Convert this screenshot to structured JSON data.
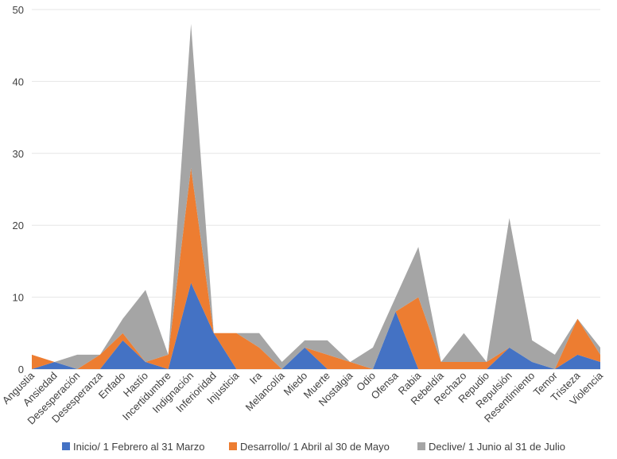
{
  "chart_data": {
    "type": "area",
    "stacked": true,
    "title": "",
    "xlabel": "",
    "ylabel": "",
    "ylim": [
      0,
      50
    ],
    "yticks": [
      0,
      10,
      20,
      30,
      40,
      50
    ],
    "categories": [
      "Angustia",
      "Ansiedad",
      "Desesperación",
      "Desesperanza",
      "Enfado",
      "Hastío",
      "Incertidumbre",
      "Indignación",
      "Inferioridad",
      "Injusticia",
      "Ira",
      "Melancolía",
      "Miedo",
      "Muerte",
      "Nostalgia",
      "Odio",
      "Ofensa",
      "Rabia",
      "Rebeldía",
      "Rechazo",
      "Repudio",
      "Repulsión",
      "Resentimiento",
      "Temor",
      "Tristeza",
      "Violencia"
    ],
    "series": [
      {
        "name": "Inicio/ 1 Febrero al 31 Marzo",
        "color": "#4472C4",
        "values": [
          0,
          1,
          0,
          0,
          4,
          1,
          0,
          12,
          5,
          0,
          0,
          0,
          3,
          0,
          0,
          0,
          8,
          0,
          0,
          0,
          0,
          3,
          1,
          0,
          2,
          1
        ]
      },
      {
        "name": "Desarrollo/ 1 Abril al 30 de Mayo",
        "color": "#ED7D31",
        "values": [
          2,
          0,
          0,
          2,
          1,
          0,
          2,
          16,
          0,
          5,
          3,
          0,
          0,
          2,
          1,
          0,
          0,
          10,
          1,
          1,
          1,
          0,
          0,
          0,
          5,
          1
        ]
      },
      {
        "name": "Declive/ 1 Junio al 31 de Julio",
        "color": "#A5A5A5",
        "values": [
          0,
          0,
          2,
          0,
          2,
          10,
          0,
          20,
          0,
          0,
          2,
          1,
          1,
          2,
          0,
          3,
          2,
          7,
          0,
          4,
          0,
          18,
          3,
          2,
          0,
          1
        ]
      }
    ],
    "legend_position": "bottom",
    "grid": true
  }
}
